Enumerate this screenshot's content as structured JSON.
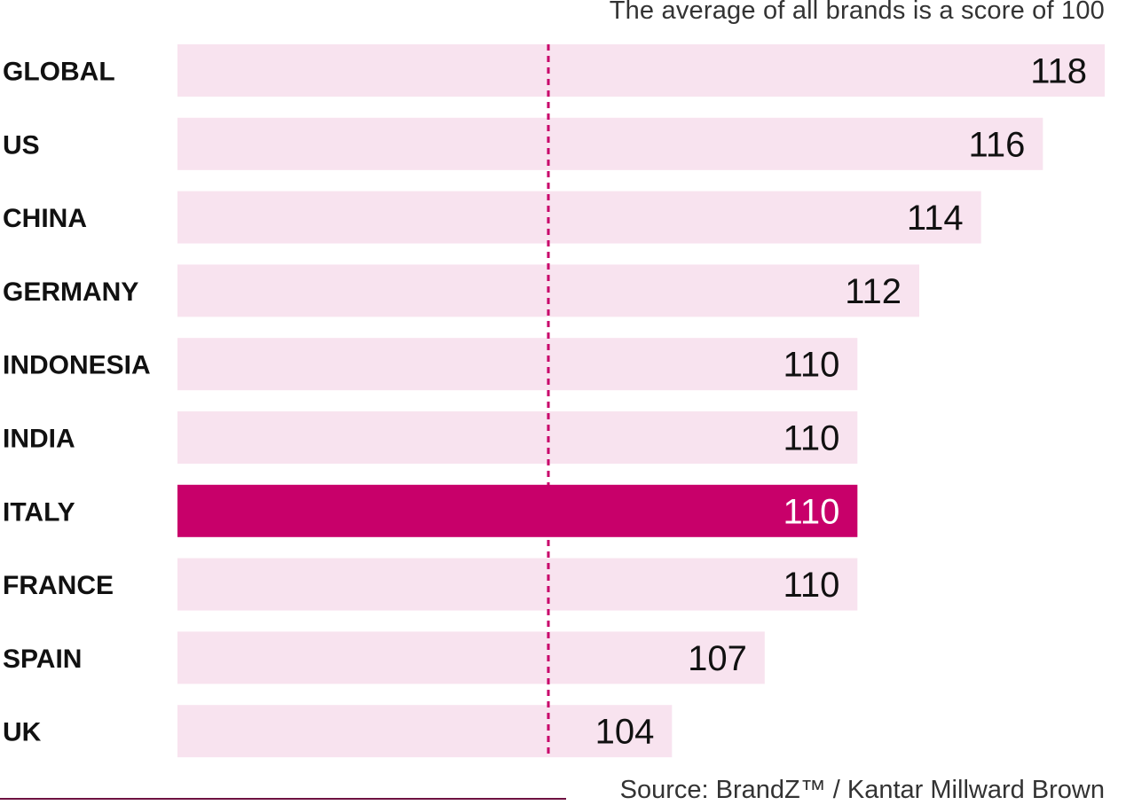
{
  "chart_data": {
    "type": "bar",
    "orientation": "horizontal",
    "categories": [
      "GLOBAL",
      "US",
      "CHINA",
      "GERMANY",
      "INDONESIA",
      "INDIA",
      "ITALY",
      "FRANCE",
      "SPAIN",
      "UK"
    ],
    "values": [
      118,
      116,
      114,
      112,
      110,
      110,
      110,
      110,
      107,
      104
    ],
    "highlight": "ITALY",
    "reference_line": 100,
    "annotation": "The average of all brands is a score of 100",
    "source": "Source: BrandZ™ / Kantar Millward Brown",
    "xlim": [
      88,
      118
    ],
    "grid": false,
    "colors": {
      "bar": "#f8e3ef",
      "highlight_bar": "#c8006a",
      "reference_line": "#c8006a",
      "label": "#111111",
      "highlight_label": "#ffffff",
      "source_rule": "#6e1141"
    }
  }
}
